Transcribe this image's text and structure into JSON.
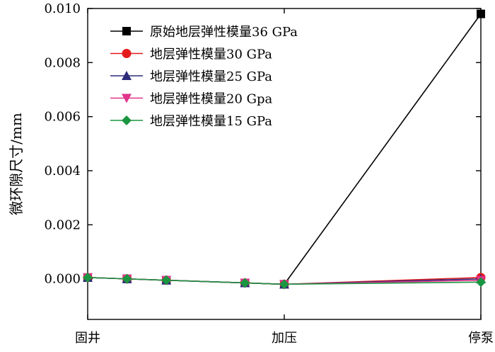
{
  "chart_data": {
    "type": "line",
    "categories": [
      "固井",
      "加压",
      "停泵"
    ],
    "x": [
      0,
      0.2,
      0.4,
      0.8,
      1.0,
      2.0
    ],
    "xticks": [
      {
        "x": 0.0,
        "label": "固井"
      },
      {
        "x": 1.0,
        "label": "加压"
      },
      {
        "x": 2.0,
        "label": "停泵"
      }
    ],
    "xlim": [
      0,
      2
    ],
    "ylabel": "微环隙尺寸/mm",
    "ylim": [
      -0.0015,
      0.01
    ],
    "yticks": [
      0.0,
      0.002,
      0.004,
      0.006,
      0.008,
      0.01
    ],
    "ytick_labels": [
      "0.000",
      "0.002",
      "0.004",
      "0.006",
      "0.008",
      "0.010"
    ],
    "grid": false,
    "legend_position": "top-left",
    "series": [
      {
        "name": "原始地层弹性模量36 GPa",
        "color": "#000000",
        "marker": "square",
        "values": [
          5e-05,
          0.0,
          -5e-05,
          -0.00015,
          -0.0002,
          0.0098
        ]
      },
      {
        "name": "地层弹性模量30 GPa",
        "color": "#e41a1c",
        "marker": "circle",
        "values": [
          5e-05,
          0.0,
          -5e-05,
          -0.00015,
          -0.0002,
          5e-05
        ]
      },
      {
        "name": "地层弹性模量25 GPa",
        "color": "#2e2a7a",
        "marker": "triangle-up",
        "values": [
          5e-05,
          0.0,
          -5e-05,
          -0.00015,
          -0.0002,
          0.0
        ]
      },
      {
        "name": "地层弹性模量20 Gpa",
        "color": "#e0338a",
        "marker": "triangle-down",
        "values": [
          5e-05,
          0.0,
          -5e-05,
          -0.00015,
          -0.0002,
          -5e-05
        ]
      },
      {
        "name": "地层弹性模量15 GPa",
        "color": "#1a9641",
        "marker": "diamond",
        "values": [
          5e-05,
          0.0,
          -5e-05,
          -0.00015,
          -0.0002,
          -0.00012
        ]
      }
    ]
  }
}
